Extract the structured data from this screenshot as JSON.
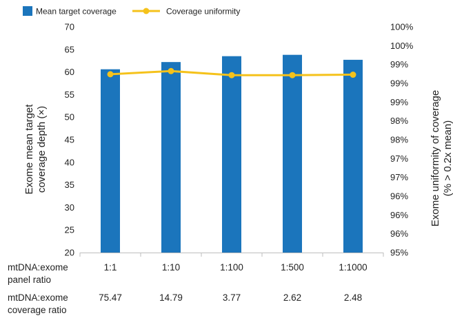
{
  "chart_data": {
    "type": "bar",
    "categories": [
      "1:1",
      "1:10",
      "1:100",
      "1:500",
      "1:1000"
    ],
    "series": [
      {
        "name": "Mean target coverage",
        "type": "bar",
        "axis": "left",
        "color": "#1b75bc",
        "values": [
          60.6,
          62.2,
          63.5,
          63.8,
          62.7
        ]
      },
      {
        "name": "Coverage uniformity",
        "type": "line",
        "axis": "right",
        "color": "#f5c21b",
        "values": [
          98.95,
          99.02,
          98.93,
          98.93,
          98.94
        ]
      }
    ],
    "ylabel": "Exome mean  target coverage depth (×)",
    "ylabel_lines": [
      "Exome mean  target",
      "coverage depth (×)"
    ],
    "ylim": [
      20,
      70
    ],
    "yticks": [
      "20",
      "25",
      "30",
      "35",
      "40",
      "45",
      "50",
      "55",
      "60",
      "65",
      "70"
    ],
    "y2label": "Exome uniformity of coverage (% > 0.2x mean)",
    "y2label_lines": [
      "Exome uniformity of coverage",
      "(% > 0.2x mean)"
    ],
    "y2lim": [
      95,
      100
    ],
    "y2ticks": [
      "95%",
      "96%",
      "96%",
      "96%",
      "97%",
      "97%",
      "98%",
      "98%",
      "99%",
      "99%",
      "99%",
      "100%",
      "100%"
    ],
    "legend": {
      "position": "top-left"
    },
    "grid": false,
    "table": {
      "rows": [
        {
          "label_lines": [
            "mtDNA:exome",
            "panel ratio"
          ],
          "values": [
            "1:1",
            "1:10",
            "1:100",
            "1:500",
            "1:1000"
          ]
        },
        {
          "label_lines": [
            "mtDNA:exome",
            "coverage ratio"
          ],
          "values": [
            "75.47",
            "14.79",
            "3.77",
            "2.62",
            "2.48"
          ]
        }
      ]
    }
  }
}
